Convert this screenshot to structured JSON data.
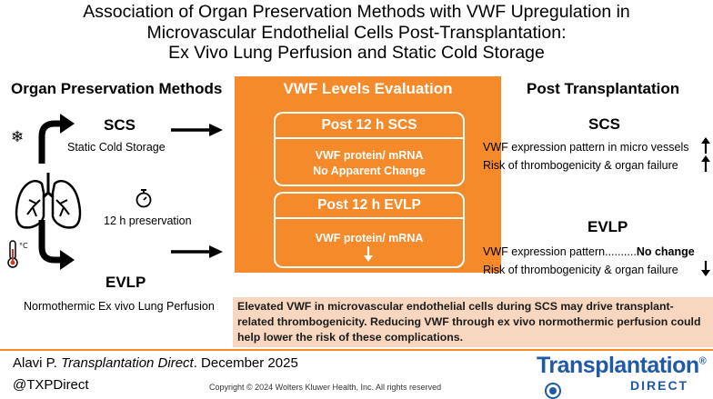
{
  "title": {
    "line1": "Association of Organ Preservation Methods with VWF Upregulation in",
    "line2": "Microvascular Endothelial Cells Post-Transplantation:",
    "line3": "Ex Vivo Lung Perfusion and Static Cold Storage"
  },
  "left": {
    "heading": "Organ Preservation Methods",
    "scs_label": "SCS",
    "scs_desc": "Static Cold Storage",
    "time_label": "12 h preservation",
    "evlp_label": "EVLP",
    "evlp_desc": "Normothermic Ex vivo Lung Perfusion"
  },
  "center": {
    "heading": "VWF Levels Evaluation",
    "box1_title": "Post 12 h SCS",
    "box1_line1": "VWF protein/ mRNA",
    "box1_line2": "No Apparent Change",
    "box2_title": "Post 12 h EVLP",
    "box2_line1": "VWF protein/ mRNA"
  },
  "right": {
    "heading": "Post Transplantation",
    "scs_label": "SCS",
    "scs_item1": "VWF expression pattern in micro vessels",
    "scs_item2": "Risk of thrombogenicity & organ failure",
    "evlp_label": "EVLP",
    "evlp_item1": "VWF expression pattern..........",
    "evlp_item1_bold": "No change",
    "evlp_item2": "Risk of thrombogenicity & organ failure"
  },
  "summary": "Elevated VWF in microvascular endothelial cells during SCS may drive transplant-related thrombogenicity. Reducing VWF through ex vivo normothermic perfusion could help lower the risk of these complications.",
  "footer": {
    "citation_author": "Alavi P. ",
    "citation_journal": "Transplantation Direct",
    "citation_date": ". December 2025",
    "handle": "@TXPDirect",
    "copyright": "Copyright © 2024  Wolters Kluwer Health, Inc. All rights reserved",
    "logo": "Transplantation",
    "logo_reg": "®",
    "logo_sub": "DIRECT"
  },
  "icons": [
    "snowflake-icon",
    "stopwatch-icon",
    "lungs-icon",
    "thermometer-icon",
    "curved-arrow-icon",
    "right-arrow-icon",
    "up-arrow-icon",
    "down-arrow-icon"
  ],
  "colors": {
    "accent": "#f58a2a",
    "summary_bg": "#f8d7c1",
    "brand": "#1e5aa8"
  }
}
